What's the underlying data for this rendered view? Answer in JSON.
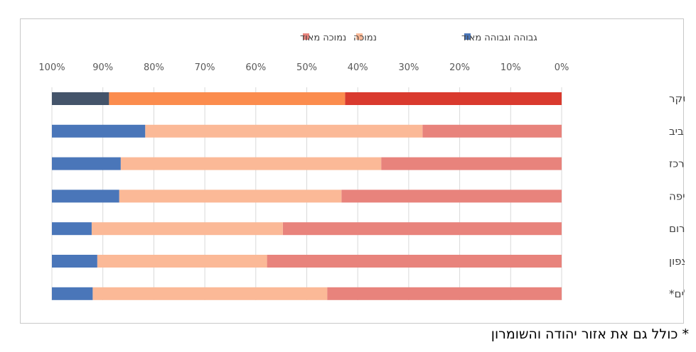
{
  "chart_data": {
    "type": "bar",
    "orientation": "horizontal",
    "stacked": "100%",
    "x_axis": {
      "direction": "reversed",
      "min": 0,
      "max": 100,
      "tick_step": 10,
      "ticks": [
        "0%",
        "10%",
        "20%",
        "30%",
        "40%",
        "50%",
        "60%",
        "70%",
        "80%",
        "90%",
        "100%"
      ]
    },
    "legend_position": "top",
    "grid": true,
    "categories": [
      "סך אוכלוסיית הסקר",
      "תל אביב",
      "המרכז",
      "חיפה",
      "הדרום",
      "הצפון",
      "ירושלים*"
    ],
    "series": [
      {
        "name": "נמוכה מאוד",
        "color": "#e8837c",
        "values": [
          42.5,
          27.3,
          35.4,
          43.2,
          54.7,
          57.8,
          46.0
        ]
      },
      {
        "name": "נמוכה",
        "color": "#fbb997",
        "values": [
          46.3,
          54.4,
          51.1,
          43.6,
          37.5,
          33.3,
          46.0
        ]
      },
      {
        "name": "גבוהה וגבוהה מאוד",
        "color": "#4a76b9",
        "values": [
          11.2,
          18.3,
          13.5,
          13.2,
          7.8,
          8.9,
          8.0
        ]
      }
    ],
    "highlight_row": {
      "category": "סך אוכלוסיית הסקר",
      "colors": [
        "#d93a2e",
        "#fb8c4e",
        "#44546a"
      ]
    }
  },
  "footnote": "* כולל גם את אזור יהודה והשומרון"
}
